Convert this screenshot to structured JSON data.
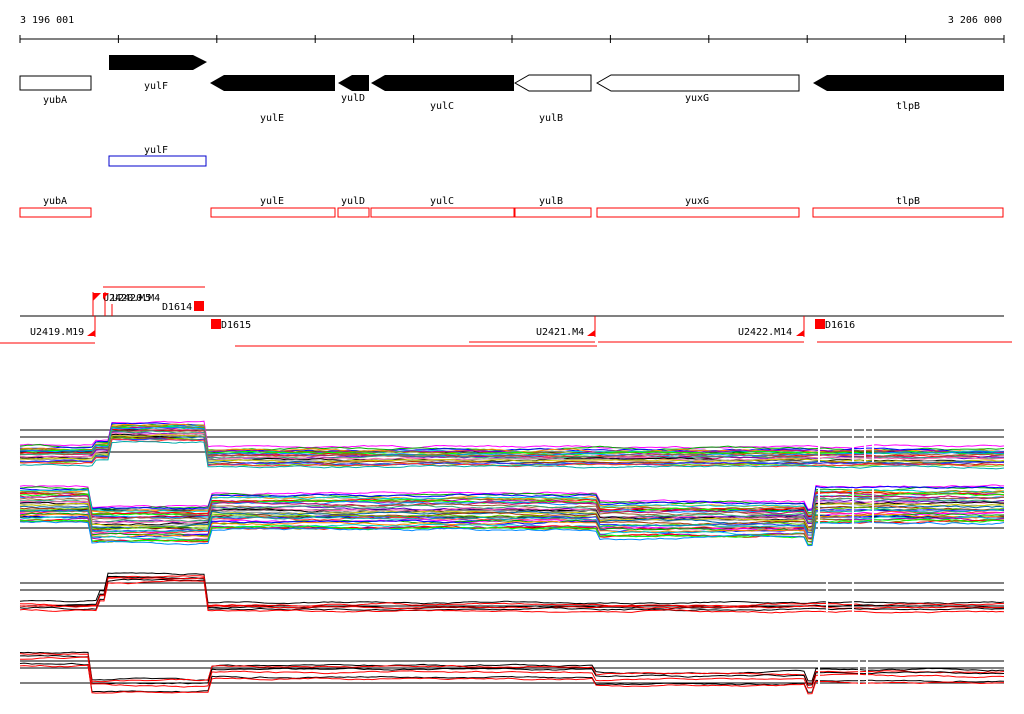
{
  "ruler": {
    "start_label": "3 196 001",
    "end_label": "3 206 000"
  },
  "genes_track": {
    "genes": [
      {
        "name": "yubA",
        "strand": "+",
        "style": "outline"
      },
      {
        "name": "yulF",
        "strand": "+",
        "style": "solid"
      },
      {
        "name": "yulE",
        "strand": "-",
        "style": "solid"
      },
      {
        "name": "yulD",
        "strand": "-",
        "style": "solid"
      },
      {
        "name": "yulC",
        "strand": "-",
        "style": "solid"
      },
      {
        "name": "yulB",
        "strand": "-",
        "style": "outline"
      },
      {
        "name": "yuxG",
        "strand": "-",
        "style": "outline"
      },
      {
        "name": "tlpB",
        "strand": "-",
        "style": "solid"
      }
    ]
  },
  "blue_track": {
    "features": [
      {
        "name": "yulF"
      }
    ]
  },
  "red_track": {
    "features": [
      {
        "name": "yubA"
      },
      {
        "name": "yulE"
      },
      {
        "name": "yulD"
      },
      {
        "name": "yulC"
      },
      {
        "name": "yulB"
      },
      {
        "name": "yuxG"
      },
      {
        "name": "tlpB"
      }
    ]
  },
  "probe_track": {
    "probes": [
      {
        "name": "U2419.M19"
      },
      {
        "name": "U2420.M5"
      },
      {
        "name": "U2420.M4"
      },
      {
        "name": "D1614"
      },
      {
        "name": "D1615"
      },
      {
        "name": "U2421.M4"
      },
      {
        "name": "U2422.M14"
      },
      {
        "name": "D1616"
      }
    ]
  },
  "colors": {
    "black": "#000000",
    "red": "#ff0000",
    "blue": "#0000cc",
    "axis": "#000000"
  }
}
